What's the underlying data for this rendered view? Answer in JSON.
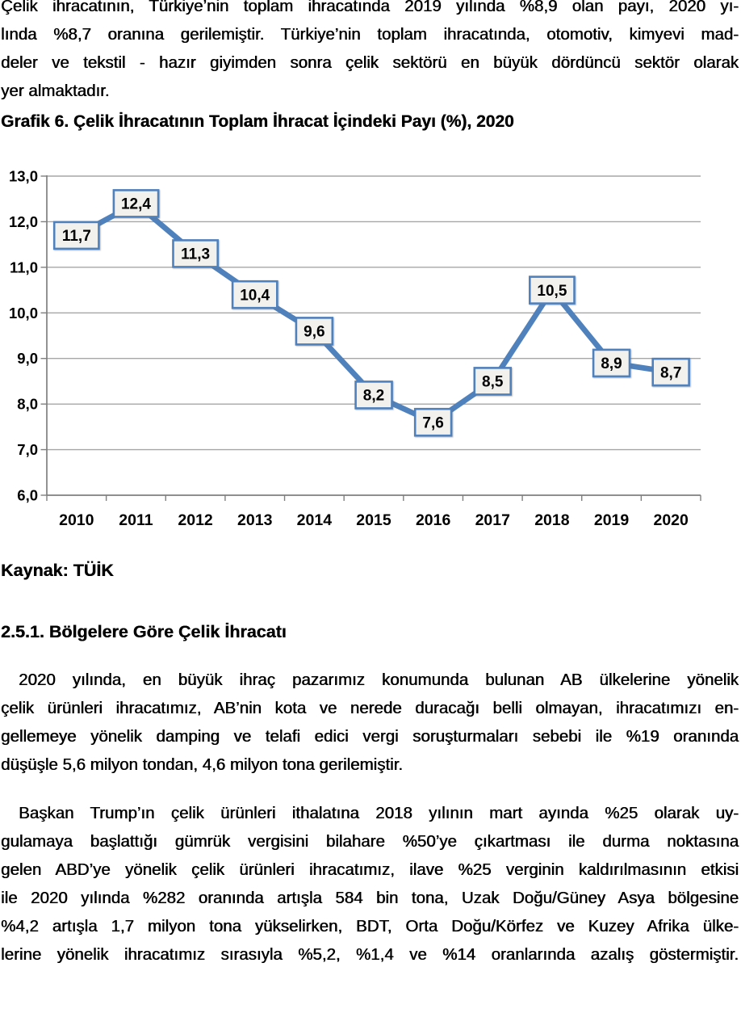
{
  "document": {
    "intro_paragraph": {
      "lines": [
        "Çelik ihracatının, Türkiye’nin toplam ihracatında 2019 yılında %8,9 olan payı, 2020 yı-",
        "lında %8,7 oranına gerilemiştir. Türkiye’nin toplam ihracatında, otomotiv, kimyevi mad-",
        "deler ve tekstil - hazır giyimden sonra çelik sektörü en büyük dördüncü sektör olarak",
        "yer almaktadır."
      ],
      "indent_first": false,
      "last_line_left": true
    },
    "chart_heading": "Grafik 6. Çelik İhracatının Toplam İhracat İçindeki Payı (%), 2020",
    "source_note": "Kaynak: TÜİK",
    "section_heading": "2.5.1. Bölgelere Göre Çelik İhracatı",
    "paragraph_eu": {
      "lines": [
        "2020 yılında, en büyük ihraç pazarımız konumunda bulunan AB ülkelerine yönelik",
        "çelik ürünleri ihracatımız, AB’nin kota ve nerede duracağı belli olmayan, ihracatımızı en-",
        "gellemeye yönelik damping ve telafi edici vergi soruşturmaları sebebi ile %19 oranında",
        "düşüşle 5,6 milyon tondan, 4,6 milyon tona gerilemiştir."
      ],
      "indent_first": true,
      "last_line_left": true
    },
    "paragraph_usa": {
      "lines": [
        "Başkan Trump’ın çelik ürünleri ithalatına 2018 yılının mart ayında %25 olarak uy-",
        "gulamaya başlattığı gümrük vergisini bilahare %50’ye çıkartması ile durma noktasına",
        "gelen ABD’ye yönelik çelik ürünleri ihracatımız, ilave %25 verginin kaldırılmasının etkisi",
        "ile 2020 yılında %282 oranında artışla 584 bin tona, Uzak Doğu/Güney Asya bölgesine",
        "%4,2 artışla 1,7 milyon tona yükselirken, BDT, Orta Doğu/Körfez ve Kuzey Afrika ülke-",
        "lerine yönelik ihracatımız sırasıyla %5,2, %1,4 ve %14 oranlarında azalış göstermiştir."
      ],
      "indent_first": true,
      "last_line_left": false
    }
  },
  "chart_data": {
    "type": "line",
    "title": "Grafik 6. Çelik İhracatının Toplam İhracat İçindeki Payı (%), 2020",
    "categories": [
      "2010",
      "2011",
      "2012",
      "2013",
      "2014",
      "2015",
      "2016",
      "2017",
      "2018",
      "2019",
      "2020"
    ],
    "values": [
      11.7,
      12.4,
      11.3,
      10.4,
      9.6,
      8.2,
      7.6,
      8.5,
      10.5,
      8.9,
      8.7
    ],
    "point_labels": [
      "11,7",
      "12,4",
      "11,3",
      "10,4",
      "9,6",
      "8,2",
      "7,6",
      "8,5",
      "10,5",
      "8,9",
      "8,7"
    ],
    "ylim": [
      6.0,
      13.0
    ],
    "ytick_step": 1.0,
    "ytick_labels": [
      "6,0",
      "7,0",
      "8,0",
      "9,0",
      "10,0",
      "11,0",
      "12,0",
      "13,0"
    ],
    "xlabel": "",
    "ylabel": "",
    "grid": true,
    "legend": false,
    "line_color": "#4F81BD",
    "label_box_fill": "#F2F1EE",
    "label_box_border": "#4F81BD",
    "gridline_color": "#A6A6A6",
    "axis_color": "#7F7F7F",
    "source": "Kaynak: TÜİK"
  }
}
